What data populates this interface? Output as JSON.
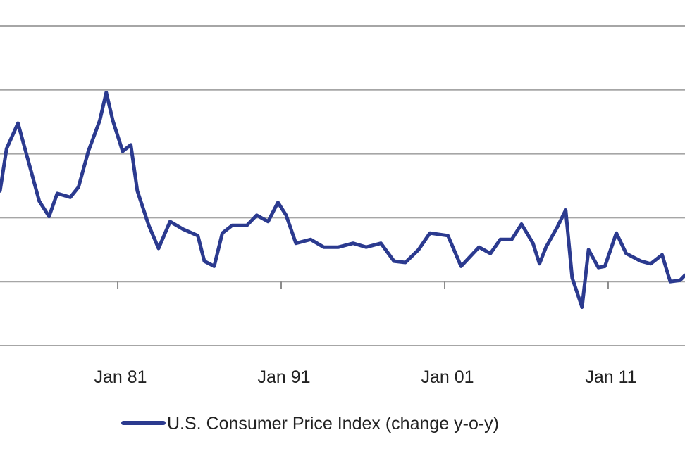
{
  "chart_data": {
    "type": "line",
    "title": "",
    "xlabel": "",
    "ylabel": "",
    "xlim": [
      1973.8,
      2015.7
    ],
    "ylim": [
      -5,
      20
    ],
    "y_gridlines": [
      -5,
      0,
      5,
      10,
      15,
      20
    ],
    "grid": true,
    "legend_position": "bottom",
    "x_ticks": [
      {
        "value": 1981.0,
        "label": "Jan 81"
      },
      {
        "value": 1991.0,
        "label": "Jan 91"
      },
      {
        "value": 2001.0,
        "label": "Jan 01"
      },
      {
        "value": 2011.0,
        "label": "Jan 11"
      }
    ],
    "series": [
      {
        "name": "U.S. Consumer Price Index (change y-o-y)",
        "color": "#2b3a8f",
        "x": [
          1973.8,
          1974.2,
          1974.9,
          1975.5,
          1976.2,
          1976.8,
          1977.3,
          1978.1,
          1978.6,
          1979.2,
          1979.9,
          1980.3,
          1980.7,
          1981.3,
          1981.8,
          1982.2,
          1982.9,
          1983.5,
          1984.2,
          1985.0,
          1985.9,
          1986.3,
          1986.9,
          1987.4,
          1988.0,
          1988.9,
          1989.5,
          1990.2,
          1990.8,
          1991.3,
          1991.9,
          1992.8,
          1993.6,
          1994.5,
          1995.4,
          1996.2,
          1997.1,
          1997.9,
          1998.6,
          1999.4,
          2000.1,
          2001.2,
          2002.0,
          2003.1,
          2003.8,
          2004.4,
          2005.1,
          2005.7,
          2006.4,
          2006.8,
          2007.2,
          2007.9,
          2008.4,
          2008.8,
          2009.4,
          2009.8,
          2010.4,
          2010.8,
          2011.5,
          2012.1,
          2013.0,
          2013.6,
          2014.3,
          2014.8,
          2015.4,
          2015.7
        ],
        "y": [
          7.1,
          10.4,
          12.4,
          9.6,
          6.3,
          5.1,
          6.9,
          6.6,
          7.4,
          10.2,
          12.6,
          14.8,
          12.6,
          10.2,
          10.7,
          7.1,
          4.4,
          2.6,
          4.7,
          4.1,
          3.6,
          1.6,
          1.2,
          3.8,
          4.4,
          4.4,
          5.2,
          4.7,
          6.2,
          5.2,
          3.0,
          3.3,
          2.7,
          2.7,
          3.0,
          2.7,
          3.0,
          1.6,
          1.5,
          2.5,
          3.8,
          3.6,
          1.2,
          2.7,
          2.2,
          3.3,
          3.3,
          4.5,
          3.0,
          1.4,
          2.7,
          4.3,
          5.6,
          0.3,
          -2.0,
          2.5,
          1.1,
          1.2,
          3.8,
          2.2,
          1.6,
          1.4,
          2.1,
          0.0,
          0.1,
          0.5
        ]
      }
    ]
  }
}
